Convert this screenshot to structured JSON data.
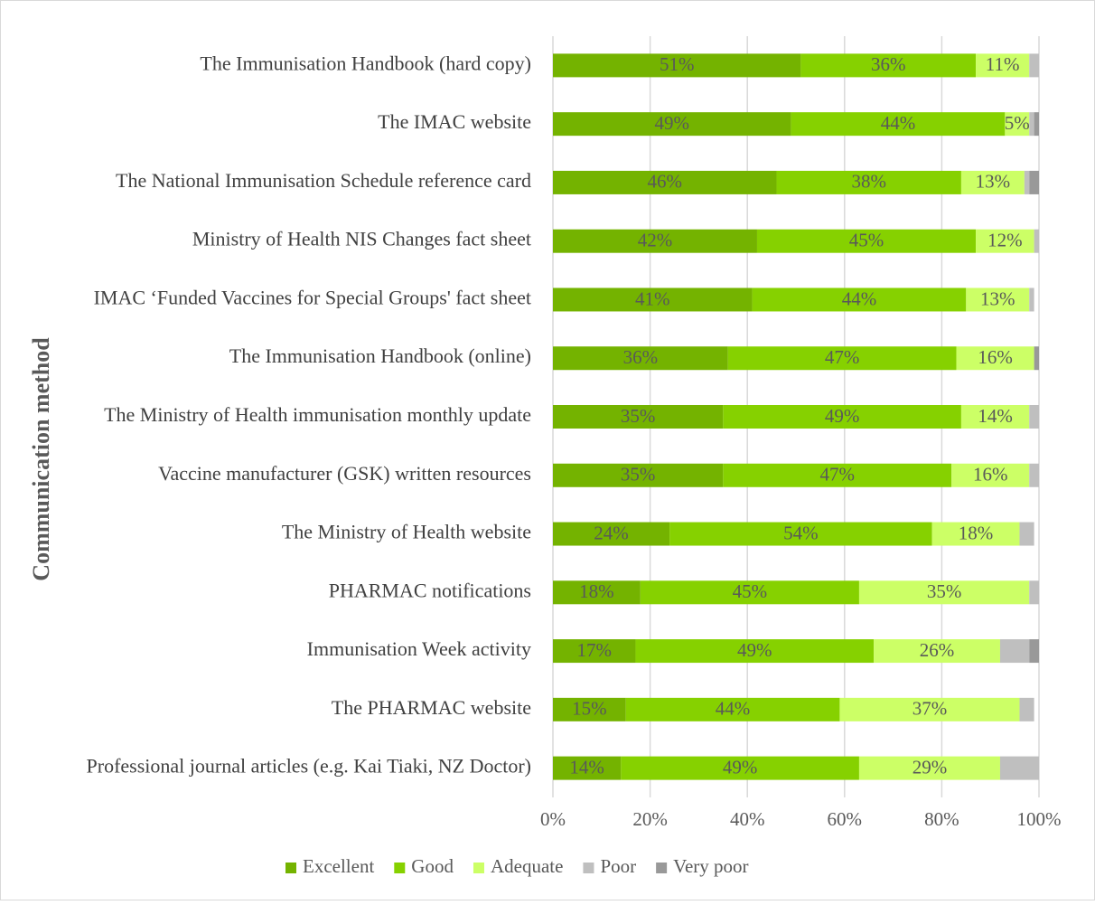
{
  "chart_data": {
    "type": "stacked_bar_horizontal",
    "y_label": "Communication method",
    "categories": [
      "The Immunisation Handbook (hard copy)",
      "The IMAC website",
      "The National Immunisation Schedule reference card",
      "Ministry of Health NIS Changes fact sheet",
      "IMAC ‘Funded Vaccines for Special Groups' fact sheet",
      "The Immunisation Handbook (online)",
      "The Ministry of Health immunisation monthly update",
      "Vaccine manufacturer (GSK) written resources",
      "The Ministry of Health website",
      "PHARMAC notifications",
      "Immunisation Week activity",
      "The PHARMAC website",
      "Professional journal articles (e.g. Kai Tiaki, NZ Doctor)"
    ],
    "series": [
      {
        "name": "Excellent",
        "color": "#74b300",
        "values": [
          51,
          49,
          46,
          42,
          41,
          36,
          35,
          35,
          24,
          18,
          17,
          15,
          14
        ],
        "value_labels": [
          "51%",
          "49%",
          "46%",
          "42%",
          "41%",
          "36%",
          "35%",
          "35%",
          "24%",
          "18%",
          "17%",
          "15%",
          "14%"
        ]
      },
      {
        "name": "Good",
        "color": "#86d100",
        "values": [
          36,
          44,
          38,
          45,
          44,
          47,
          49,
          47,
          54,
          45,
          49,
          44,
          49
        ],
        "value_labels": [
          "36%",
          "44%",
          "38%",
          "45%",
          "44%",
          "47%",
          "49%",
          "47%",
          "54%",
          "45%",
          "49%",
          "44%",
          "49%"
        ]
      },
      {
        "name": "Adequate",
        "color": "#ccff66",
        "values": [
          11,
          5,
          13,
          12,
          13,
          16,
          14,
          16,
          18,
          35,
          26,
          37,
          29
        ],
        "value_labels": [
          "11%",
          "5%",
          "13%",
          "12%",
          "13%",
          "16%",
          "14%",
          "16%",
          "18%",
          "35%",
          "26%",
          "37%",
          "29%"
        ]
      },
      {
        "name": "Poor",
        "color": "#bfbfbf",
        "values": [
          2,
          1,
          1,
          1,
          1,
          0,
          2,
          2,
          3,
          2,
          6,
          3,
          8
        ]
      },
      {
        "name": "Very poor",
        "color": "#999999",
        "values": [
          0,
          1,
          2,
          0,
          0,
          1,
          0,
          0,
          0,
          0,
          2,
          0,
          0
        ]
      }
    ],
    "xlim": [
      0,
      100
    ],
    "xticks": [
      {
        "value": 0,
        "label": "0%"
      },
      {
        "value": 20,
        "label": "20%"
      },
      {
        "value": 40,
        "label": "40%"
      },
      {
        "value": 60,
        "label": "60%"
      },
      {
        "value": 80,
        "label": "80%"
      },
      {
        "value": 100,
        "label": "100%"
      }
    ],
    "grid": true,
    "legend": "bottom"
  }
}
